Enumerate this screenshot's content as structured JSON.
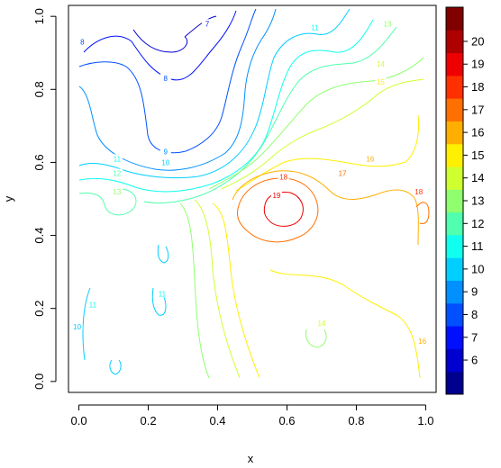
{
  "chart_data": {
    "type": "contour",
    "xlabel": "x",
    "ylabel": "y",
    "xlim": [
      -0.03,
      1.03
    ],
    "ylim": [
      -0.03,
      1.03
    ],
    "x_ticks": [
      0.0,
      0.2,
      0.4,
      0.6,
      0.8,
      1.0
    ],
    "x_tick_labels": [
      "0.0",
      "0.2",
      "0.4",
      "0.6",
      "0.8",
      "1.0"
    ],
    "y_ticks": [
      0.0,
      0.2,
      0.4,
      0.6,
      0.8,
      1.0
    ],
    "y_tick_labels": [
      "0.0",
      "0.2",
      "0.4",
      "0.6",
      "0.8",
      "1.0"
    ],
    "levels": [
      6,
      7,
      8,
      9,
      10,
      11,
      12,
      13,
      14,
      15,
      16,
      17,
      18,
      19,
      20
    ],
    "colorbar": {
      "ticks": [
        "6",
        "7",
        "8",
        "9",
        "10",
        "11",
        "12",
        "13",
        "14",
        "15",
        "16",
        "17",
        "18",
        "19",
        "20"
      ],
      "colors": [
        "#00008F",
        "#0000CF",
        "#0010FF",
        "#0050FF",
        "#0090FF",
        "#00CFFF",
        "#10FFEF",
        "#50FFAF",
        "#90FF6F",
        "#CFFF30",
        "#FFEF00",
        "#FFAF00",
        "#FF7000",
        "#FF3000",
        "#EF0000",
        "#AF0000",
        "#800000"
      ]
    },
    "contour_labels": [
      {
        "text": "7",
        "x": 0.37,
        "y": 0.98,
        "level": 7
      },
      {
        "text": "8",
        "x": 0.01,
        "y": 0.93,
        "level": 8
      },
      {
        "text": "8",
        "x": 0.25,
        "y": 0.83,
        "level": 8
      },
      {
        "text": "9",
        "x": 0.25,
        "y": 0.63,
        "level": 9
      },
      {
        "text": "10",
        "x": 0.25,
        "y": 0.6,
        "level": 10
      },
      {
        "text": "10",
        "x": -0.005,
        "y": 0.15,
        "level": 10
      },
      {
        "text": "11",
        "x": 0.11,
        "y": 0.61,
        "level": 11
      },
      {
        "text": "11",
        "x": 0.68,
        "y": 0.97,
        "level": 11
      },
      {
        "text": "11",
        "x": 0.24,
        "y": 0.24,
        "level": 11
      },
      {
        "text": "11",
        "x": 0.04,
        "y": 0.21,
        "level": 11
      },
      {
        "text": "12",
        "x": 0.11,
        "y": 0.57,
        "level": 12
      },
      {
        "text": "13",
        "x": 0.11,
        "y": 0.52,
        "level": 13
      },
      {
        "text": "13",
        "x": 0.89,
        "y": 0.98,
        "level": 13
      },
      {
        "text": "14",
        "x": 0.87,
        "y": 0.87,
        "level": 14
      },
      {
        "text": "14",
        "x": 0.7,
        "y": 0.16,
        "level": 14
      },
      {
        "text": "15",
        "x": 0.87,
        "y": 0.82,
        "level": 15
      },
      {
        "text": "16",
        "x": 0.84,
        "y": 0.61,
        "level": 16
      },
      {
        "text": "16",
        "x": 0.99,
        "y": 0.11,
        "level": 16
      },
      {
        "text": "17",
        "x": 0.76,
        "y": 0.57,
        "level": 17
      },
      {
        "text": "18",
        "x": 0.59,
        "y": 0.56,
        "level": 18
      },
      {
        "text": "18",
        "x": 0.98,
        "y": 0.52,
        "level": 18
      },
      {
        "text": "19",
        "x": 0.57,
        "y": 0.51,
        "level": 19
      }
    ]
  }
}
